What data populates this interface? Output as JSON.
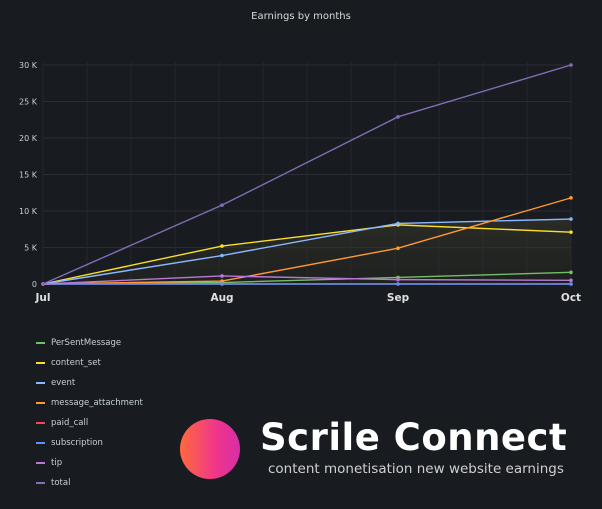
{
  "chart_data": {
    "type": "line",
    "title": "Earnings by months",
    "categories": [
      "Jul",
      "Aug",
      "Sep",
      "Oct"
    ],
    "ylim": [
      0,
      31000
    ],
    "yticks": [
      0,
      5000,
      10000,
      15000,
      20000,
      25000,
      30000
    ],
    "ytick_labels": [
      "0",
      "5 K",
      "10 K",
      "15 K",
      "20 K",
      "25 K",
      "30 K"
    ],
    "grid": true,
    "legend_position": "bottom-left",
    "series": [
      {
        "name": "PerSentMessage",
        "color": "#73bf69",
        "values": [
          0,
          200,
          900,
          1600
        ]
      },
      {
        "name": "content_set",
        "color": "#fade2a",
        "values": [
          0,
          5200,
          8100,
          7100
        ]
      },
      {
        "name": "event",
        "color": "#8ab8ff",
        "values": [
          0,
          3900,
          8300,
          8900
        ]
      },
      {
        "name": "message_attachment",
        "color": "#ff9830",
        "values": [
          0,
          400,
          4900,
          11800
        ]
      },
      {
        "name": "paid_call",
        "color": "#f2495c",
        "values": [
          0,
          0,
          0,
          0
        ]
      },
      {
        "name": "subscription",
        "color": "#5794f2",
        "values": [
          0,
          0,
          0,
          0
        ]
      },
      {
        "name": "tip",
        "color": "#b877d9",
        "values": [
          0,
          1100,
          600,
          500
        ]
      },
      {
        "name": "total",
        "color": "#806eb7",
        "values": [
          0,
          10800,
          22900,
          30000
        ]
      }
    ]
  },
  "brand": {
    "name": "Scrile Connect",
    "tagline": "content monetisation new website earnings"
  }
}
